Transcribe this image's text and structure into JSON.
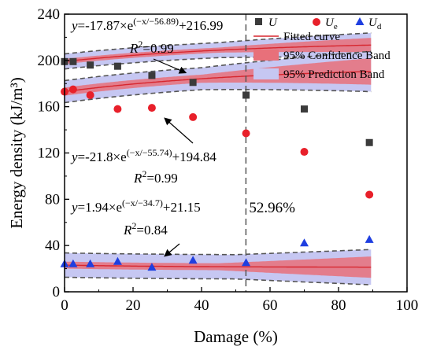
{
  "chart_data": {
    "type": "scatter",
    "xlabel": "Damage (%)",
    "ylabel": "Energy density (kJ/m³)",
    "xlim": [
      0,
      100
    ],
    "ylim": [
      0,
      240
    ],
    "xticks": [
      0,
      20,
      40,
      60,
      80,
      100
    ],
    "yticks": [
      0,
      40,
      80,
      120,
      160,
      200,
      240
    ],
    "grid": false,
    "legend_position": "top-right",
    "vline": {
      "x": 52.96,
      "label": "52.96%"
    },
    "legend": {
      "U": "U",
      "Ue": "U",
      "Ue_sub": "e",
      "Ud": "U",
      "Ud_sub": "d",
      "fitted": "Fitted curve",
      "confidence": "95% Confidence Band",
      "prediction": "95% Prediction Band"
    },
    "series": [
      {
        "key": "U",
        "marker": "square",
        "color": "#222222",
        "x": [
          0,
          2.5,
          7.5,
          15.5,
          25.5,
          37.5,
          53,
          70,
          89
        ],
        "y": [
          199,
          199,
          196,
          195,
          187,
          181,
          170,
          158,
          129
        ],
        "fit": {
          "a": -17.87,
          "t": -56.89,
          "c": 216.99
        },
        "equation": {
          "y": "y",
          "eq": "=-17.87×e",
          "exp": "(−x/−56.89)",
          "tail": "+216.99",
          "r2_label": "R",
          "r2_sup": "2",
          "r2_value": "=0.99"
        }
      },
      {
        "key": "Ue",
        "marker": "circle",
        "color": "#e8202a",
        "x": [
          0,
          2.5,
          7.5,
          15.5,
          25.5,
          37.5,
          53,
          70,
          89
        ],
        "y": [
          173,
          175,
          170,
          158,
          159,
          151,
          137,
          121,
          84
        ],
        "fit": {
          "a": -21.8,
          "t": -55.74,
          "c": 194.84
        },
        "equation": {
          "y": "y",
          "eq": "=-21.8×e",
          "exp": "(−x/−55.74)",
          "tail": "+194.84",
          "r2_label": "R",
          "r2_sup": "2",
          "r2_value": "=0.99"
        }
      },
      {
        "key": "Ud",
        "marker": "triangle",
        "color": "#1f3fe0",
        "x": [
          0,
          2.5,
          7.5,
          15.5,
          25.5,
          37.5,
          53,
          70,
          89
        ],
        "y": [
          24,
          24,
          24,
          26,
          21,
          27,
          25,
          42,
          45
        ],
        "fit": {
          "a": 1.94,
          "t": -34.7,
          "c": 21.15
        },
        "equation": {
          "y": "y",
          "eq": "=1.94×e",
          "exp": "(−x/−34.7)",
          "tail": "+21.15",
          "r2_label": "R",
          "r2_sup": "2",
          "r2_value": "=0.84"
        }
      }
    ],
    "colors": {
      "fit_line": "#d7262e",
      "confidence_band": "#e8707a",
      "prediction_band": "#c6c7f2",
      "band_border": "#555555"
    }
  }
}
